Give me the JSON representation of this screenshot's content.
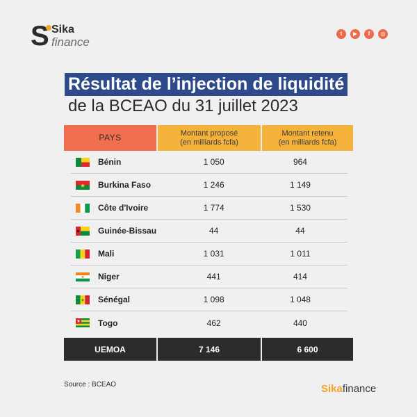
{
  "logo": {
    "mark": "S",
    "line1": "Sika",
    "line2": "finance"
  },
  "social": [
    {
      "name": "twitter-icon",
      "glyph": "t"
    },
    {
      "name": "youtube-icon",
      "glyph": "▶"
    },
    {
      "name": "facebook-icon",
      "glyph": "f"
    },
    {
      "name": "instagram-icon",
      "glyph": "◎"
    }
  ],
  "title": {
    "line1": "Résultat de l’injection de liquidité",
    "line2": "de la BCEAO du 31 juillet 2023"
  },
  "table": {
    "headers": {
      "pays": "PAYS",
      "propose": "Montant proposé\n(en milliards fcfa)",
      "retenu": "Montant retenu\n(en milliards fcfa)"
    },
    "rows": [
      {
        "country": "Bénin",
        "propose": "1 050",
        "retenu": "964",
        "flag": "benin"
      },
      {
        "country": "Burkina Faso",
        "propose": "1 246",
        "retenu": "1 149",
        "flag": "burkina"
      },
      {
        "country": "Côte d'Ivoire",
        "propose": "1 774",
        "retenu": "1 530",
        "flag": "civ"
      },
      {
        "country": "Guinée-Bissau",
        "propose": "44",
        "retenu": "44",
        "flag": "gbissau"
      },
      {
        "country": "Mali",
        "propose": "1 031",
        "retenu": "1 011",
        "flag": "mali"
      },
      {
        "country": "Niger",
        "propose": "441",
        "retenu": "414",
        "flag": "niger"
      },
      {
        "country": "Sénégal",
        "propose": "1 098",
        "retenu": "1 048",
        "flag": "senegal"
      },
      {
        "country": "Togo",
        "propose": "462",
        "retenu": "440",
        "flag": "togo"
      }
    ],
    "total": {
      "label": "UEMOA",
      "propose": "7 146",
      "retenu": "6 600"
    }
  },
  "footer": {
    "source": "Source : BCEAO",
    "brand_part1": "Sika",
    "brand_part2": "finance"
  },
  "colors": {
    "title_bg": "#2f4a8a",
    "pays_header": "#ef6e4d",
    "value_header": "#f5b23b",
    "total_row": "#2c2c2c",
    "accent": "#f0a52a"
  }
}
